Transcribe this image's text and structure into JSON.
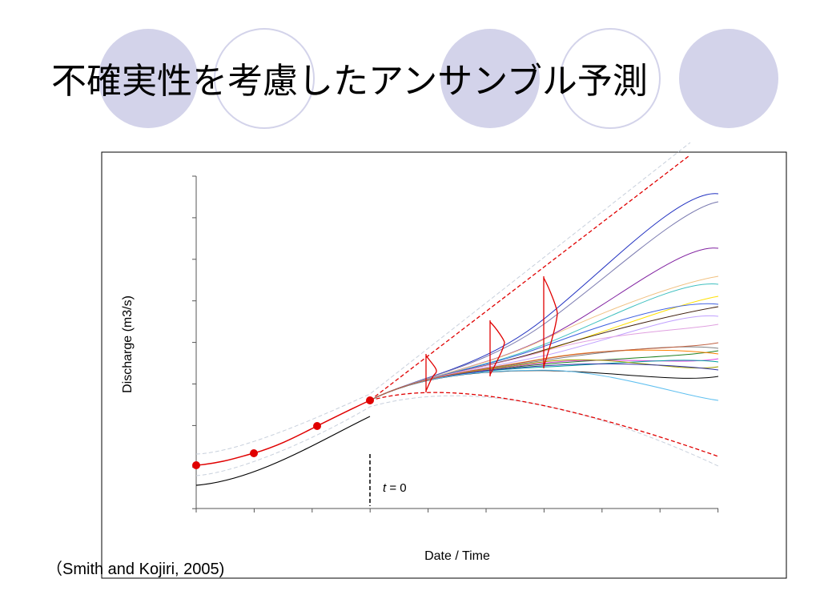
{
  "title": "不確実性を考慮したアンサンブル予測",
  "figure": {
    "y_label": "Discharge (m3/s)",
    "x_label": "Date / Time",
    "annotation_var": "t",
    "annotation_rest": "= 0"
  },
  "citation": "（Smith and Kojiri, 2005)"
}
